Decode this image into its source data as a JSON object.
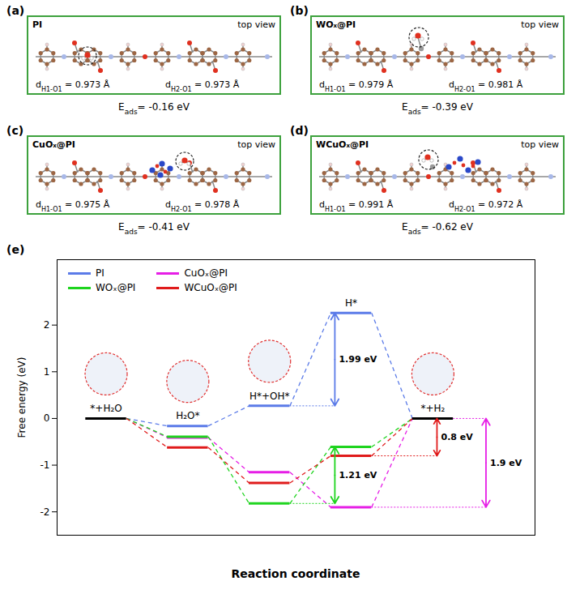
{
  "panels": {
    "distance_symbol": "d",
    "equals": "=",
    "distance_unit": "Å",
    "energy_symbol": "E",
    "energy_subscript": "ads",
    "energy_unit": "eV",
    "items": [
      {
        "label": "(a)",
        "name": "PI",
        "view": "top view",
        "distances": [
          {
            "bond": "H1-O1",
            "value": 0.973
          },
          {
            "bond": "H2-O1",
            "value": 0.973
          }
        ],
        "e_ads": -0.16
      },
      {
        "label": "(b)",
        "name": "WOₓ@PI",
        "view": "top view",
        "distances": [
          {
            "bond": "H1-O1",
            "value": 0.979
          },
          {
            "bond": "H2-O1",
            "value": 0.981
          }
        ],
        "e_ads": -0.39
      },
      {
        "label": "(c)",
        "name": "CuOₓ@PI",
        "view": "top view",
        "distances": [
          {
            "bond": "H1-O1",
            "value": 0.975
          },
          {
            "bond": "H2-O1",
            "value": 0.978
          }
        ],
        "e_ads": -0.41
      },
      {
        "label": "(d)",
        "name": "WCuOₓ@PI",
        "view": "top view",
        "distances": [
          {
            "bond": "H1-O1",
            "value": 0.991
          },
          {
            "bond": "H2-O1",
            "value": 0.972
          }
        ],
        "e_ads": -0.62
      }
    ]
  },
  "chart_data": {
    "type": "levels",
    "panel_label": "(e)",
    "x_label": "Reaction coordinate",
    "y_label": "Free energy (eV)",
    "categories": [
      "*+H₂O",
      "H₂O*",
      "H*+OH*",
      "H*",
      "*+H₂"
    ],
    "series": [
      {
        "name": "PI",
        "color": "#5b7be8",
        "values": [
          0,
          -0.16,
          0.27,
          2.26,
          0
        ]
      },
      {
        "name": "CuOₓ@PI",
        "color": "#e61ee6",
        "values": [
          0,
          -0.41,
          -1.15,
          -1.9,
          0
        ]
      },
      {
        "name": "WOₓ@PI",
        "color": "#1ed41e",
        "values": [
          0,
          -0.39,
          -1.82,
          -0.61,
          0
        ]
      },
      {
        "name": "WCuOₓ@PI",
        "color": "#e01b1b",
        "values": [
          0,
          -0.62,
          -1.38,
          -0.8,
          0
        ]
      }
    ],
    "ylim": [
      -2.5,
      3.4
    ],
    "yticks": [
      -2,
      -1,
      0,
      1,
      2
    ],
    "tick_labels": "y",
    "legend": "top-left",
    "line_style": "dashed",
    "annotations": [
      {
        "text": "1.99 eV",
        "series": "PI",
        "between": [
          "H*+OH*",
          "H*"
        ]
      },
      {
        "text": "1.21 eV",
        "series": "WOₓ@PI",
        "between": [
          "H*+OH*",
          "H*"
        ]
      },
      {
        "text": "0.8 eV",
        "series": "WCuOₓ@PI",
        "between": [
          "H*",
          "*+H₂"
        ]
      },
      {
        "text": "1.9 eV",
        "series": "CuOₓ@PI",
        "between": [
          "H*",
          "*+H₂"
        ]
      }
    ]
  }
}
